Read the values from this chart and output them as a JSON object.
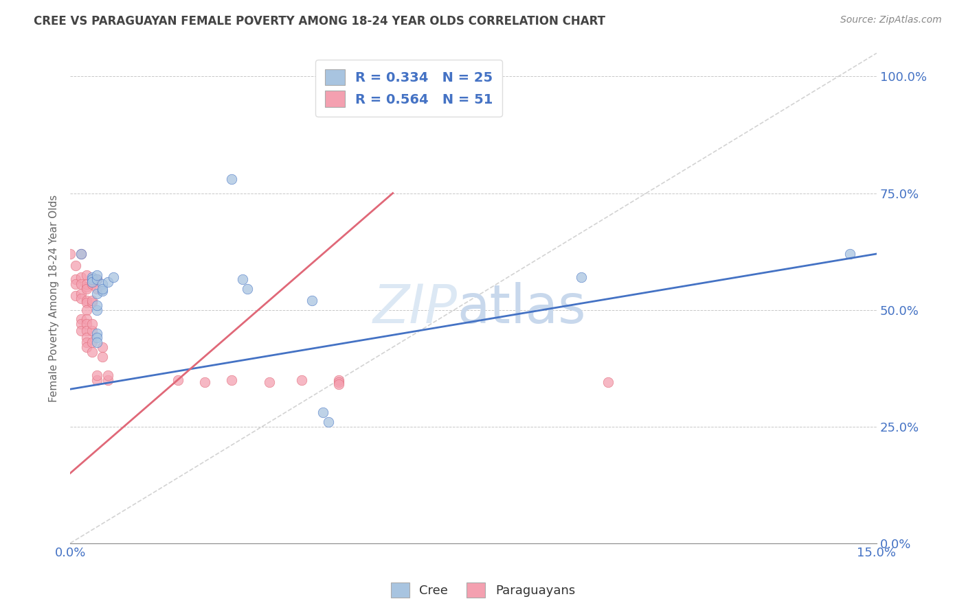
{
  "title": "CREE VS PARAGUAYAN FEMALE POVERTY AMONG 18-24 YEAR OLDS CORRELATION CHART",
  "source": "Source: ZipAtlas.com",
  "ylabel": "Female Poverty Among 18-24 Year Olds",
  "xlim": [
    0.0,
    0.15
  ],
  "ylim": [
    0.0,
    1.05
  ],
  "x_ticks": [
    0.0,
    0.03,
    0.06,
    0.09,
    0.12,
    0.15
  ],
  "x_tick_labels": [
    "0.0%",
    "",
    "",
    "",
    "",
    "15.0%"
  ],
  "y_ticks_right": [
    0.0,
    0.25,
    0.5,
    0.75,
    1.0
  ],
  "y_tick_labels_right": [
    "0.0%",
    "25.0%",
    "50.0%",
    "75.0%",
    "100.0%"
  ],
  "cree_R": 0.334,
  "cree_N": 25,
  "para_R": 0.564,
  "para_N": 51,
  "cree_color": "#a8c4e0",
  "para_color": "#f4a0b0",
  "cree_line_color": "#4472c4",
  "para_line_color": "#e06878",
  "ref_line_color": "#c8c8c8",
  "legend_text_color": "#4472c4",
  "title_color": "#444444",
  "source_color": "#888888",
  "watermark_color": "#d4e4f4",
  "cree_line": [
    0.0,
    0.33,
    0.15,
    0.62
  ],
  "para_line": [
    0.0,
    0.15,
    0.06,
    0.75
  ],
  "cree_scatter": [
    [
      0.002,
      0.62
    ],
    [
      0.004,
      0.57
    ],
    [
      0.004,
      0.565
    ],
    [
      0.004,
      0.56
    ],
    [
      0.005,
      0.565
    ],
    [
      0.005,
      0.575
    ],
    [
      0.005,
      0.535
    ],
    [
      0.005,
      0.45
    ],
    [
      0.005,
      0.44
    ],
    [
      0.005,
      0.43
    ],
    [
      0.005,
      0.5
    ],
    [
      0.005,
      0.51
    ],
    [
      0.006,
      0.555
    ],
    [
      0.006,
      0.54
    ],
    [
      0.006,
      0.545
    ],
    [
      0.007,
      0.56
    ],
    [
      0.008,
      0.57
    ],
    [
      0.03,
      0.78
    ],
    [
      0.032,
      0.565
    ],
    [
      0.033,
      0.545
    ],
    [
      0.045,
      0.52
    ],
    [
      0.047,
      0.28
    ],
    [
      0.048,
      0.26
    ],
    [
      0.095,
      0.57
    ],
    [
      0.145,
      0.62
    ]
  ],
  "para_scatter": [
    [
      0.0,
      0.62
    ],
    [
      0.001,
      0.595
    ],
    [
      0.001,
      0.565
    ],
    [
      0.001,
      0.53
    ],
    [
      0.001,
      0.555
    ],
    [
      0.002,
      0.57
    ],
    [
      0.002,
      0.555
    ],
    [
      0.002,
      0.535
    ],
    [
      0.002,
      0.525
    ],
    [
      0.002,
      0.48
    ],
    [
      0.002,
      0.47
    ],
    [
      0.002,
      0.455
    ],
    [
      0.002,
      0.62
    ],
    [
      0.003,
      0.575
    ],
    [
      0.003,
      0.55
    ],
    [
      0.003,
      0.555
    ],
    [
      0.003,
      0.545
    ],
    [
      0.003,
      0.52
    ],
    [
      0.003,
      0.515
    ],
    [
      0.003,
      0.5
    ],
    [
      0.003,
      0.48
    ],
    [
      0.003,
      0.47
    ],
    [
      0.003,
      0.455
    ],
    [
      0.003,
      0.44
    ],
    [
      0.003,
      0.43
    ],
    [
      0.003,
      0.42
    ],
    [
      0.004,
      0.41
    ],
    [
      0.004,
      0.43
    ],
    [
      0.004,
      0.455
    ],
    [
      0.004,
      0.47
    ],
    [
      0.004,
      0.515
    ],
    [
      0.004,
      0.52
    ],
    [
      0.004,
      0.56
    ],
    [
      0.004,
      0.555
    ],
    [
      0.005,
      0.565
    ],
    [
      0.005,
      0.545
    ],
    [
      0.005,
      0.35
    ],
    [
      0.005,
      0.36
    ],
    [
      0.006,
      0.42
    ],
    [
      0.006,
      0.4
    ],
    [
      0.007,
      0.35
    ],
    [
      0.007,
      0.36
    ],
    [
      0.02,
      0.35
    ],
    [
      0.025,
      0.345
    ],
    [
      0.03,
      0.35
    ],
    [
      0.037,
      0.345
    ],
    [
      0.043,
      0.35
    ],
    [
      0.05,
      0.35
    ],
    [
      0.05,
      0.345
    ],
    [
      0.05,
      0.34
    ],
    [
      0.1,
      0.345
    ]
  ]
}
